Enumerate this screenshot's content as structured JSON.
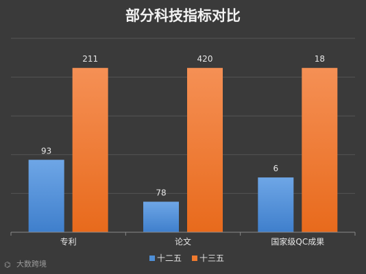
{
  "watermark": "大数跨境",
  "colors": {
    "background": "#3a3a3a",
    "series_1": "#4f8fd6",
    "series_1_light": "#6ea6e6",
    "series_2": "#f07a2e",
    "series_2_light": "#f58e4c"
  },
  "chart_data": {
    "type": "bar",
    "title": "部分科技指标对比",
    "categories": [
      "专利",
      "论文",
      "国家级QC成果"
    ],
    "series": [
      {
        "name": "十二五",
        "values": [
          93,
          78,
          6
        ]
      },
      {
        "name": "十三五",
        "values": [
          211,
          420,
          18
        ]
      }
    ],
    "legend_position": "bottom",
    "grid": true,
    "note": "each category uses its own scale; bar heights shown relative to the value range of that category"
  }
}
